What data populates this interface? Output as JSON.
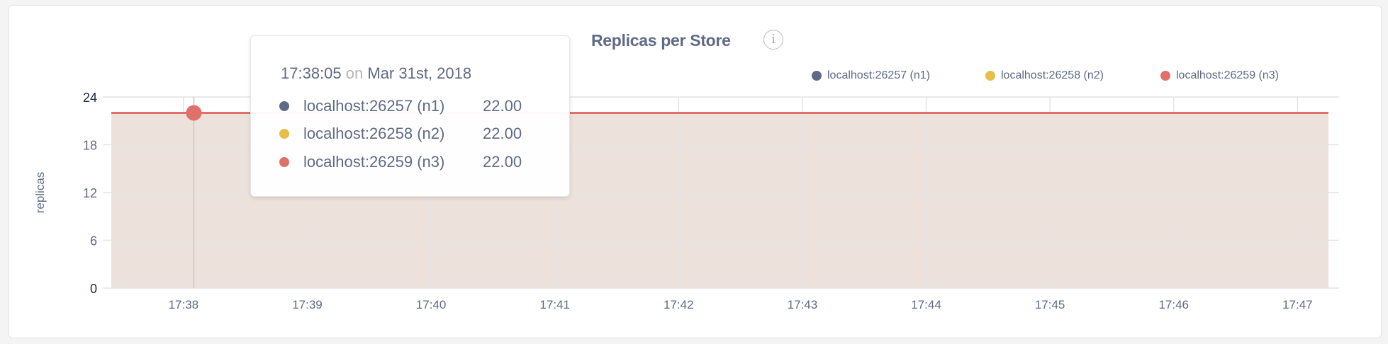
{
  "chart_data": {
    "type": "area",
    "title": "Replicas per Store",
    "ylabel": "replicas",
    "xlabel": "",
    "ylim": [
      0,
      24
    ],
    "yticks": [
      "0",
      "6",
      "12",
      "18",
      "24"
    ],
    "xlim": [
      "17:37:25",
      "17:47:15"
    ],
    "categories": [
      "17:38",
      "17:39",
      "17:40",
      "17:41",
      "17:42",
      "17:43",
      "17:44",
      "17:45",
      "17:46",
      "17:47"
    ],
    "grid": true,
    "legend": "top-right",
    "series": [
      {
        "name": "localhost:26257 (n1)",
        "color": "#5f6a87",
        "values": [
          22,
          22,
          22,
          22,
          22,
          22,
          22,
          22,
          22,
          22
        ]
      },
      {
        "name": "localhost:26258 (n2)",
        "color": "#e8bd4a",
        "values": [
          22,
          22,
          22,
          22,
          22,
          22,
          22,
          22,
          22,
          22
        ]
      },
      {
        "name": "localhost:26259 (n3)",
        "color": "#e0706a",
        "values": [
          22,
          22,
          22,
          22,
          22,
          22,
          22,
          22,
          22,
          22
        ]
      }
    ],
    "fill_color": "#ecdfd9"
  },
  "info_icon": "info-icon",
  "tooltip": {
    "time": "17:38:05",
    "on": "on",
    "date": "Mar 31st, 2018",
    "rows": [
      {
        "label": "localhost:26257 (n1)",
        "value": "22.00"
      },
      {
        "label": "localhost:26258 (n2)",
        "value": "22.00"
      },
      {
        "label": "localhost:26259 (n3)",
        "value": "22.00"
      }
    ]
  }
}
